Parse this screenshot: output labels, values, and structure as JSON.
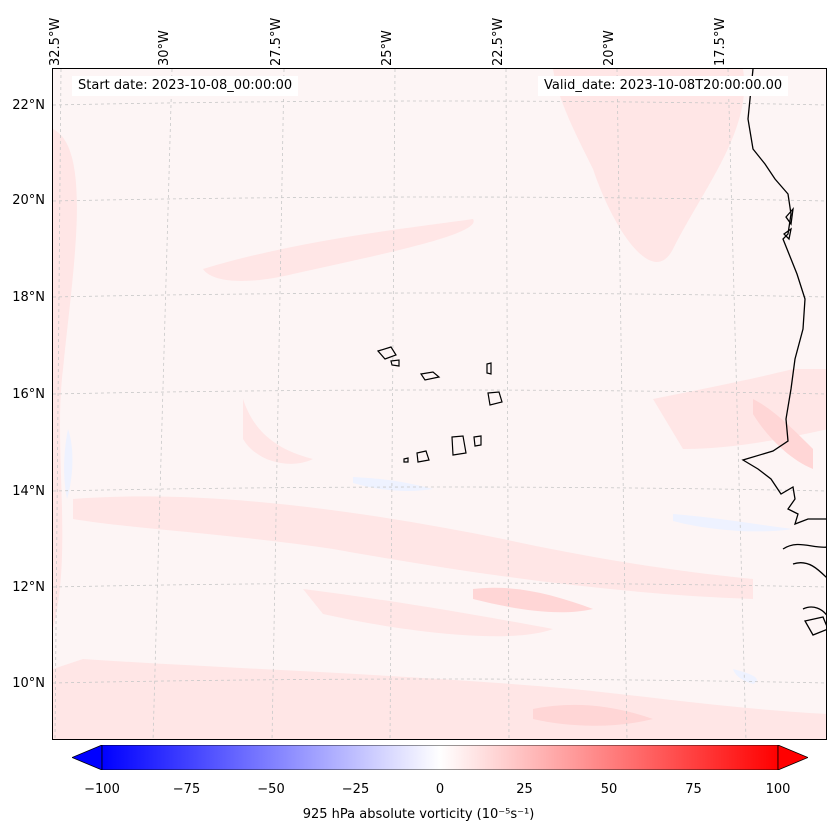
{
  "map": {
    "title_left": "Start date: 2023-10-08_00:00:00",
    "title_right": "Valid_date: 2023-10-08T20:00:00.00",
    "lon_labels": [
      "32.5°W",
      "30°W",
      "27.5°W",
      "25°W",
      "22.5°W",
      "20°W",
      "17.5°W"
    ],
    "lat_labels": [
      "22°N",
      "20°N",
      "18°N",
      "16°N",
      "14°N",
      "12°N",
      "10°N"
    ],
    "colors": {
      "background": "#fdf5f5",
      "positive_light": "#ffe6e6",
      "positive_mid": "#ffd6d6",
      "negative_light": "#eef2ff",
      "coastline": "#000000",
      "grid": "#c8c8c8"
    }
  },
  "colorbar": {
    "label": "925 hPa absolute vorticity (10⁻⁵s⁻¹)",
    "ticks": [
      "−100",
      "−75",
      "−50",
      "−25",
      "0",
      "25",
      "50",
      "75",
      "100"
    ],
    "min": -100,
    "max": 100,
    "low_color": "#0000ff",
    "mid_color": "#ffffff",
    "high_color": "#ff0000"
  }
}
